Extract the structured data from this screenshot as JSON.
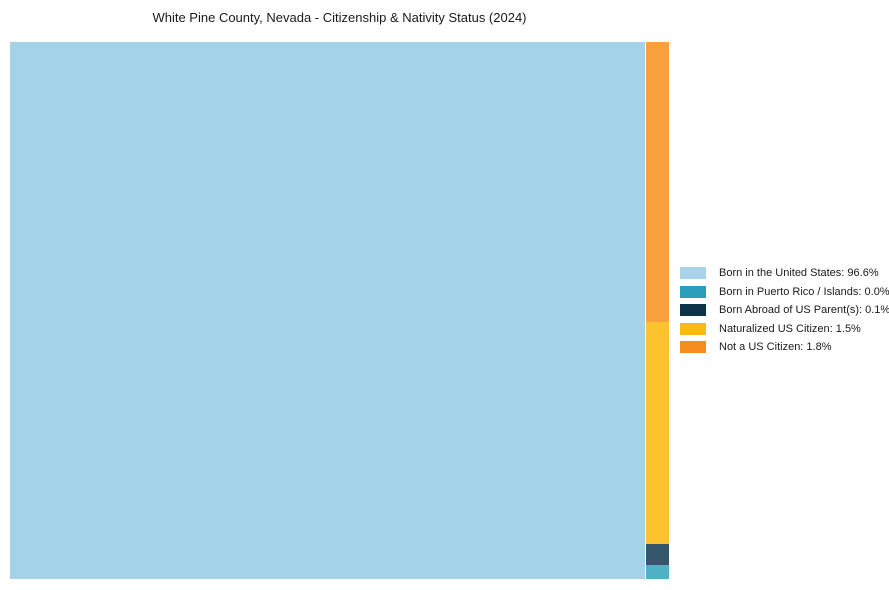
{
  "title": "White Pine County, Nevada - Citizenship & Nativity Status (2024)",
  "chart_data": {
    "type": "treemap",
    "title": "White Pine County, Nevada - Citizenship & Nativity Status (2024)",
    "value_unit": "percent",
    "grid": false,
    "legend_position": "right-center",
    "series": [
      {
        "name": "Born in the United States",
        "value": 96.6,
        "label": "Born in the United States: 96.6%",
        "tile_color": "#A4D2E9",
        "legend_color": "#A8D3EA"
      },
      {
        "name": "Born in Puerto Rico / Islands",
        "value": 0.0,
        "label": "Born in Puerto Rico / Islands: 0.0%",
        "tile_color": "#4FB0C6",
        "legend_color": "#2B9EBD"
      },
      {
        "name": "Born Abroad of US Parent(s)",
        "value": 0.1,
        "label": "Born Abroad of US Parent(s): 0.1%",
        "tile_color": "#35566A",
        "legend_color": "#0D3349"
      },
      {
        "name": "Naturalized US Citizen",
        "value": 1.5,
        "label": "Naturalized US Citizen: 1.5%",
        "tile_color": "#FDC32F",
        "legend_color": "#FCB813"
      },
      {
        "name": "Not a US Citizen",
        "value": 1.8,
        "label": "Not a US Citizen: 1.8%",
        "tile_color": "#F9A13C",
        "legend_color": "#F68B1F"
      }
    ]
  }
}
